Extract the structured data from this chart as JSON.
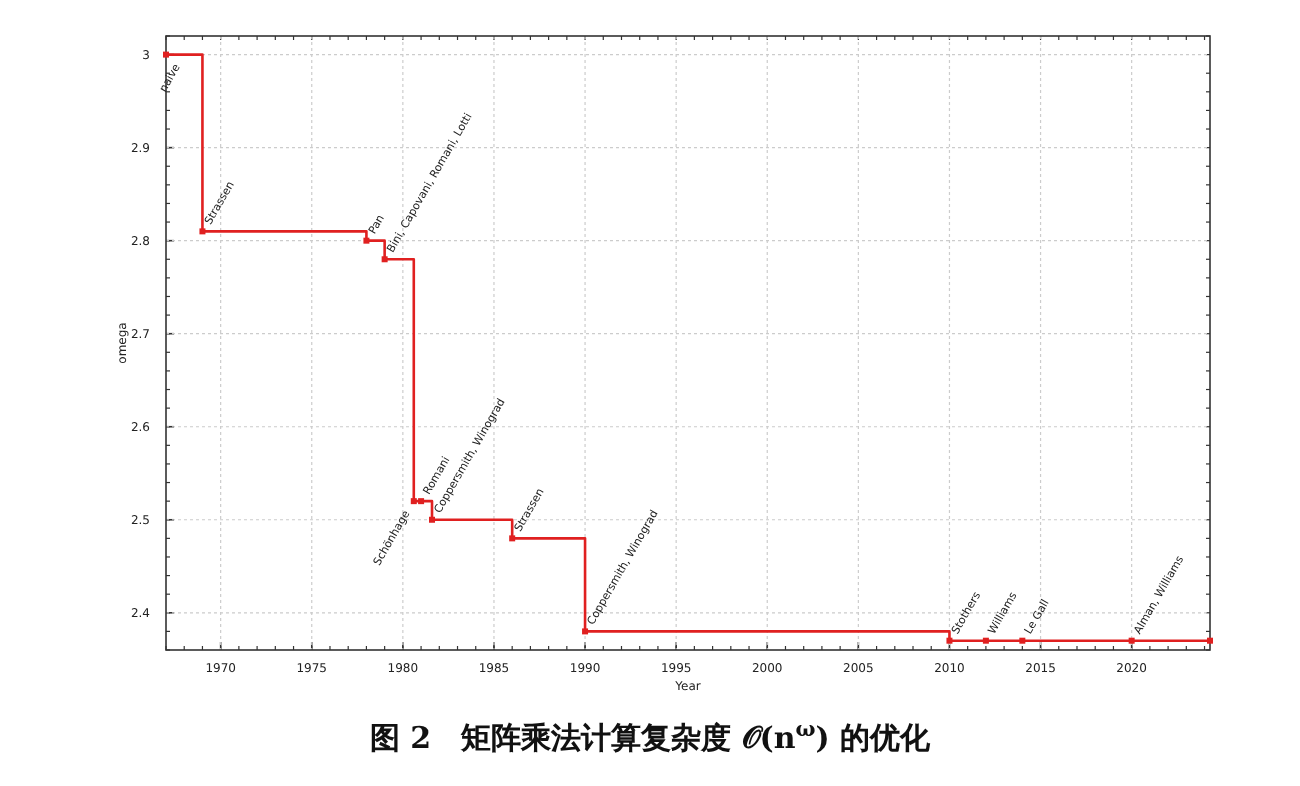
{
  "chart_data": {
    "type": "step",
    "title": "图 2　矩阵乘法计算复杂度 𝒪(n$^{ω}$) 的优化",
    "xlabel": "Year",
    "ylabel": "omega",
    "x": [
      1967,
      1969,
      1978,
      1979,
      1980.6,
      1981,
      1981.6,
      1986,
      1990,
      2010,
      2012,
      2014,
      2020,
      2024.3
    ],
    "series": [
      {
        "color": "#e02020",
        "values": [
          3.0,
          2.81,
          2.8,
          2.78,
          2.52,
          2.52,
          2.5,
          2.48,
          2.38,
          2.37,
          2.37,
          2.37,
          2.37,
          2.37
        ]
      }
    ],
    "annotations": [
      {
        "text": "naive",
        "x": 1968,
        "y": 3.0
      },
      {
        "text": "Strassen",
        "x": 1969,
        "y": 2.81
      },
      {
        "text": "Pan",
        "x": 1978,
        "y": 2.8
      },
      {
        "text": "Bini, Capovani, Romani, Lotti",
        "x": 1979,
        "y": 2.78
      },
      {
        "text": "Schönhage",
        "x": 1980.6,
        "y": 2.52
      },
      {
        "text": "Romani",
        "x": 1981,
        "y": 2.52
      },
      {
        "text": "Coppersmith, Winograd",
        "x": 1981.6,
        "y": 2.5
      },
      {
        "text": "Strassen",
        "x": 1986,
        "y": 2.48
      },
      {
        "text": "Coppersmith, Winograd",
        "x": 1990,
        "y": 2.38
      },
      {
        "text": "Stothers",
        "x": 2010,
        "y": 2.37
      },
      {
        "text": "Williams",
        "x": 2012,
        "y": 2.37
      },
      {
        "text": "Le Gall",
        "x": 2014,
        "y": 2.37
      },
      {
        "text": "Alman, Williams",
        "x": 2020,
        "y": 2.37
      }
    ],
    "xlim": [
      1967,
      2024.3
    ],
    "ylim": [
      2.36,
      3.02
    ],
    "xticks": [
      1970,
      1975,
      1980,
      1985,
      1990,
      1995,
      2000,
      2005,
      2010,
      2015,
      2020
    ],
    "yticks": [
      2.4,
      2.5,
      2.6,
      2.7,
      2.8,
      2.9,
      {
        "value": 3.0,
        "label": "3"
      }
    ],
    "grid": true,
    "marker": "square",
    "line_style": "solid"
  }
}
